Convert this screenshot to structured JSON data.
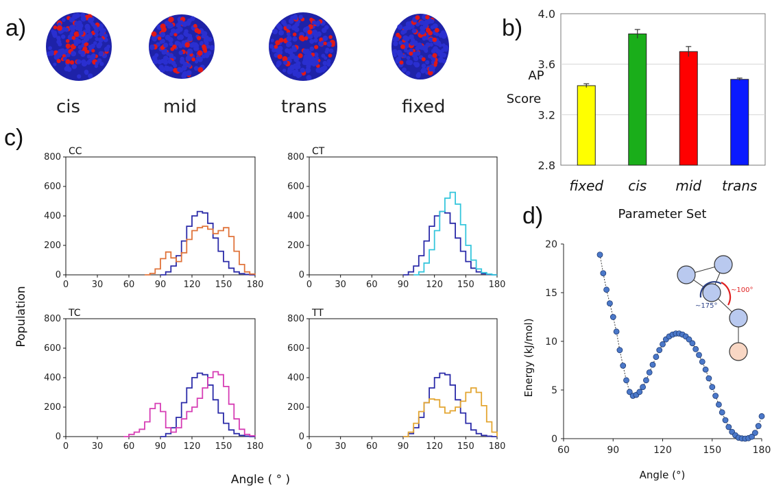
{
  "panel_labels": {
    "a": "a)",
    "b": "b)",
    "c": "c)",
    "d": "d)"
  },
  "panel_a": {
    "labels": [
      "cis",
      "mid",
      "trans",
      "fixed"
    ],
    "colors": {
      "bead_main": "#2a2fd0",
      "bead_accent": "#e01818"
    }
  },
  "chart_data": [
    {
      "id": "b",
      "type": "bar",
      "categories": [
        "fixed",
        "cis",
        "mid",
        "trans"
      ],
      "values": [
        3.43,
        3.84,
        3.7,
        3.48
      ],
      "errors": [
        0.015,
        0.035,
        0.04,
        0.01
      ],
      "colors": [
        "#ffff00",
        "#1aae1a",
        "#ff0000",
        "#0a1aff"
      ],
      "ylabel": "AP Score",
      "ylabel_lines": [
        "AP",
        "Score"
      ],
      "xlabel": "Parameter Set",
      "ylim": [
        2.8,
        4.0
      ],
      "yticks": [
        "2.8",
        "3.2",
        "3.6",
        "4.0"
      ],
      "grid": true
    },
    {
      "id": "c",
      "type": "line",
      "ylabel": "Population",
      "xlabel": "Angle ( ° )",
      "xlim": [
        0,
        180
      ],
      "ylim": [
        0,
        800
      ],
      "xticks": [
        "0",
        "30",
        "60",
        "90",
        "120",
        "150",
        "180"
      ],
      "yticks": [
        "0",
        "200",
        "400",
        "600",
        "800"
      ],
      "reference_color": "#2a2aa8",
      "reference": {
        "x": [
          90,
          95,
          100,
          105,
          110,
          115,
          120,
          125,
          130,
          135,
          140,
          145,
          150,
          155,
          160,
          165,
          170,
          175,
          180
        ],
        "y": [
          0,
          20,
          60,
          130,
          230,
          330,
          400,
          430,
          420,
          350,
          250,
          160,
          90,
          45,
          20,
          8,
          3,
          0,
          0
        ]
      },
      "panels": [
        {
          "title": "CC",
          "color": "#e0733a",
          "x": [
            75,
            80,
            85,
            90,
            95,
            100,
            105,
            110,
            115,
            120,
            125,
            130,
            135,
            140,
            145,
            150,
            155,
            160,
            165,
            170,
            175,
            180
          ],
          "y": [
            0,
            10,
            40,
            110,
            155,
            115,
            90,
            150,
            240,
            300,
            320,
            330,
            310,
            280,
            300,
            320,
            260,
            160,
            70,
            20,
            5,
            0
          ]
        },
        {
          "title": "CT",
          "color": "#35c6dc",
          "x": [
            100,
            105,
            110,
            115,
            120,
            125,
            130,
            135,
            140,
            145,
            150,
            155,
            160,
            165,
            170,
            175,
            180
          ],
          "y": [
            0,
            20,
            80,
            170,
            300,
            430,
            520,
            560,
            480,
            340,
            200,
            100,
            40,
            15,
            5,
            0,
            0
          ]
        },
        {
          "title": "TC",
          "color": "#d63cb4",
          "x": [
            55,
            60,
            65,
            70,
            75,
            80,
            85,
            90,
            95,
            100,
            105,
            110,
            115,
            120,
            125,
            130,
            135,
            140,
            145,
            150,
            155,
            160,
            165,
            170,
            175,
            180
          ],
          "y": [
            0,
            15,
            30,
            50,
            100,
            190,
            225,
            170,
            60,
            30,
            60,
            120,
            170,
            200,
            260,
            330,
            400,
            440,
            420,
            340,
            220,
            120,
            50,
            15,
            5,
            0
          ]
        },
        {
          "title": "TT",
          "color": "#e3a530",
          "x": [
            90,
            95,
            100,
            105,
            110,
            115,
            120,
            125,
            130,
            135,
            140,
            145,
            150,
            155,
            160,
            165,
            170,
            175,
            180
          ],
          "y": [
            0,
            30,
            90,
            170,
            230,
            255,
            250,
            200,
            160,
            175,
            200,
            240,
            300,
            330,
            300,
            210,
            100,
            30,
            0
          ]
        }
      ]
    },
    {
      "id": "d",
      "type": "scatter",
      "ylabel": "Energy (kJ/mol)",
      "xlabel": "Angle (°)",
      "xlim": [
        60,
        180
      ],
      "ylim": [
        0,
        20
      ],
      "xticks": [
        "60",
        "90",
        "120",
        "150",
        "180"
      ],
      "yticks": [
        "0",
        "5",
        "10",
        "15",
        "20"
      ],
      "series_color": "#4b78c9",
      "inset_labels": {
        "left": "~175°",
        "right": "~100°"
      },
      "inset_colors": {
        "bead": "#b9c9ef",
        "bead_end": "#f9d7c4",
        "arc_left": "#2a3f86",
        "arc_right": "#e02020"
      },
      "x": [
        82,
        84,
        86,
        88,
        90,
        92,
        94,
        96,
        98,
        100,
        102,
        104,
        106,
        108,
        110,
        112,
        114,
        116,
        118,
        120,
        122,
        124,
        126,
        128,
        130,
        132,
        134,
        136,
        138,
        140,
        142,
        144,
        146,
        148,
        150,
        152,
        154,
        156,
        158,
        160,
        162,
        164,
        166,
        168,
        170,
        172,
        174,
        176,
        178,
        180
      ],
      "y": [
        18.9,
        17.0,
        15.3,
        13.9,
        12.5,
        11.0,
        9.1,
        7.5,
        6.0,
        4.8,
        4.4,
        4.5,
        4.8,
        5.3,
        6.0,
        6.8,
        7.6,
        8.4,
        9.1,
        9.7,
        10.2,
        10.5,
        10.7,
        10.8,
        10.8,
        10.7,
        10.5,
        10.2,
        9.8,
        9.2,
        8.6,
        7.9,
        7.1,
        6.2,
        5.3,
        4.4,
        3.5,
        2.7,
        1.9,
        1.2,
        0.7,
        0.35,
        0.1,
        0.02,
        0.0,
        0.05,
        0.2,
        0.6,
        1.3,
        2.3
      ]
    }
  ]
}
